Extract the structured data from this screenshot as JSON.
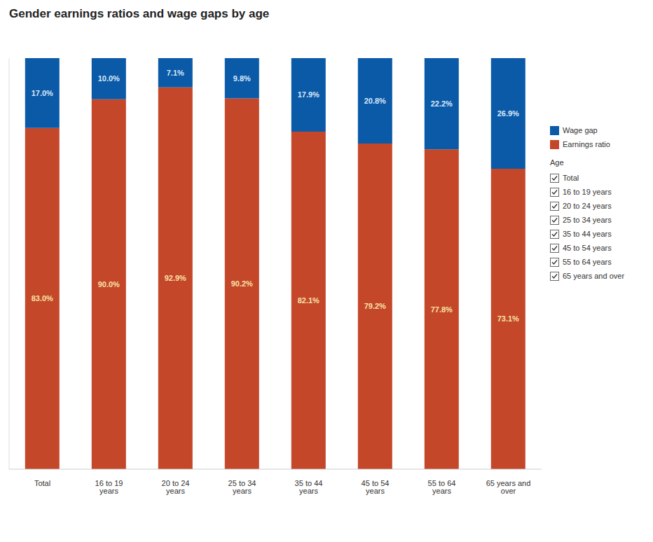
{
  "chart_data": {
    "type": "bar",
    "title": "Gender earnings ratios and wage gaps by age",
    "categories": [
      "Total",
      "16 to 19 years",
      "20 to 24 years",
      "25 to 34 years",
      "35 to 44 years",
      "45 to 54 years",
      "55 to 64 years",
      "65 years and over"
    ],
    "series": [
      {
        "name": "Wage gap",
        "color": "#0b5aa8",
        "values": [
          17.0,
          10.0,
          7.1,
          9.8,
          17.9,
          20.8,
          22.2,
          26.9
        ],
        "value_labels": [
          "17.0%",
          "10.0%",
          "7.1%",
          "9.8%",
          "17.9%",
          "20.8%",
          "22.2%",
          "26.9%"
        ]
      },
      {
        "name": "Earnings ratio",
        "color": "#c4472a",
        "values": [
          83.0,
          90.0,
          92.9,
          90.2,
          82.1,
          79.2,
          77.8,
          73.1
        ],
        "value_labels": [
          "83.0%",
          "90.0%",
          "92.9%",
          "90.2%",
          "82.1%",
          "79.2%",
          "77.8%",
          "73.1%"
        ]
      }
    ],
    "ylim": [
      0,
      100
    ],
    "stacked": true,
    "data_labels": true,
    "tick_labels": "x",
    "legend": "right",
    "filter_title": "Age"
  }
}
